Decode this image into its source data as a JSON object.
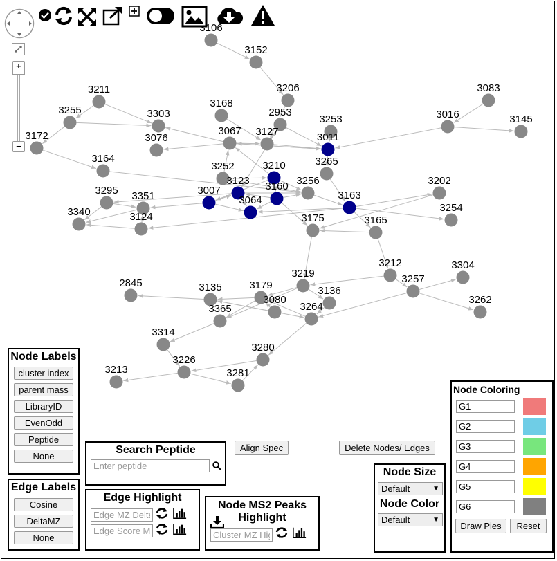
{
  "graph": {
    "nodes": [
      {
        "id": "3106",
        "color": "gray"
      },
      {
        "id": "3152",
        "color": "gray"
      },
      {
        "id": "3206",
        "color": "gray"
      },
      {
        "id": "3211",
        "color": "gray"
      },
      {
        "id": "3083",
        "color": "gray"
      },
      {
        "id": "3255",
        "color": "gray"
      },
      {
        "id": "3303",
        "color": "gray"
      },
      {
        "id": "3168",
        "color": "gray"
      },
      {
        "id": "2953",
        "color": "gray"
      },
      {
        "id": "3016",
        "color": "gray"
      },
      {
        "id": "3145",
        "color": "gray"
      },
      {
        "id": "3253",
        "color": "gray"
      },
      {
        "id": "3172",
        "color": "gray"
      },
      {
        "id": "3076",
        "color": "gray"
      },
      {
        "id": "3067",
        "color": "gray"
      },
      {
        "id": "3127",
        "color": "gray"
      },
      {
        "id": "3011",
        "color": "blue"
      },
      {
        "id": "3164",
        "color": "gray"
      },
      {
        "id": "3252",
        "color": "gray"
      },
      {
        "id": "3210",
        "color": "blue"
      },
      {
        "id": "3265",
        "color": "gray"
      },
      {
        "id": "3202",
        "color": "gray"
      },
      {
        "id": "3123",
        "color": "blue"
      },
      {
        "id": "3295",
        "color": "gray"
      },
      {
        "id": "3007",
        "color": "blue"
      },
      {
        "id": "3160",
        "color": "blue"
      },
      {
        "id": "3256",
        "color": "gray"
      },
      {
        "id": "3163",
        "color": "blue"
      },
      {
        "id": "3351",
        "color": "gray"
      },
      {
        "id": "3064",
        "color": "blue"
      },
      {
        "id": "3254",
        "color": "gray"
      },
      {
        "id": "3340",
        "color": "gray"
      },
      {
        "id": "3124",
        "color": "gray"
      },
      {
        "id": "3175",
        "color": "gray"
      },
      {
        "id": "3165",
        "color": "gray"
      },
      {
        "id": "3212",
        "color": "gray"
      },
      {
        "id": "3304",
        "color": "gray"
      },
      {
        "id": "2845",
        "color": "gray"
      },
      {
        "id": "3219",
        "color": "gray"
      },
      {
        "id": "3257",
        "color": "gray"
      },
      {
        "id": "3135",
        "color": "gray"
      },
      {
        "id": "3179",
        "color": "gray"
      },
      {
        "id": "3136",
        "color": "gray"
      },
      {
        "id": "3080",
        "color": "gray"
      },
      {
        "id": "3262",
        "color": "gray"
      },
      {
        "id": "3365",
        "color": "gray"
      },
      {
        "id": "3264",
        "color": "gray"
      },
      {
        "id": "3314",
        "color": "gray"
      },
      {
        "id": "3280",
        "color": "gray"
      },
      {
        "id": "3226",
        "color": "gray"
      },
      {
        "id": "3213",
        "color": "gray"
      },
      {
        "id": "3281",
        "color": "gray"
      }
    ],
    "edges": [
      [
        "3106",
        "3152"
      ],
      [
        "3152",
        "3206"
      ],
      [
        "3206",
        "3127"
      ],
      [
        "3211",
        "3255"
      ],
      [
        "3211",
        "3303"
      ],
      [
        "3255",
        "3172"
      ],
      [
        "3255",
        "3303"
      ],
      [
        "3172",
        "3164"
      ],
      [
        "3083",
        "3016"
      ],
      [
        "3016",
        "3145"
      ],
      [
        "3016",
        "3011"
      ],
      [
        "3253",
        "3011"
      ],
      [
        "2953",
        "3011"
      ],
      [
        "2953",
        "3127"
      ],
      [
        "3168",
        "3127"
      ],
      [
        "3067",
        "3303"
      ],
      [
        "3067",
        "3076"
      ],
      [
        "3067",
        "3127"
      ],
      [
        "3127",
        "3011"
      ],
      [
        "3011",
        "3067"
      ],
      [
        "3011",
        "3265"
      ],
      [
        "3164",
        "3256"
      ],
      [
        "3252",
        "3210"
      ],
      [
        "3252",
        "3256"
      ],
      [
        "3210",
        "3256"
      ],
      [
        "3210",
        "3160"
      ],
      [
        "3210",
        "3007"
      ],
      [
        "3123",
        "3295"
      ],
      [
        "3123",
        "3064"
      ],
      [
        "3123",
        "3256"
      ],
      [
        "3007",
        "3123"
      ],
      [
        "3007",
        "3351"
      ],
      [
        "3007",
        "3064"
      ],
      [
        "3160",
        "3064"
      ],
      [
        "3160",
        "3256"
      ],
      [
        "3160",
        "3175"
      ],
      [
        "3160",
        "3123"
      ],
      [
        "3256",
        "3163"
      ],
      [
        "3265",
        "3163"
      ],
      [
        "3163",
        "3202"
      ],
      [
        "3163",
        "3254"
      ],
      [
        "3163",
        "3165"
      ],
      [
        "3163",
        "3064"
      ],
      [
        "3163",
        "3124"
      ],
      [
        "3202",
        "3175"
      ],
      [
        "3295",
        "3340"
      ],
      [
        "3295",
        "3351"
      ],
      [
        "3351",
        "3340"
      ],
      [
        "3124",
        "3340"
      ],
      [
        "3124",
        "3351"
      ],
      [
        "3175",
        "3219"
      ],
      [
        "3165",
        "3175"
      ],
      [
        "3165",
        "3212"
      ],
      [
        "3212",
        "3219"
      ],
      [
        "3212",
        "3257"
      ],
      [
        "3257",
        "3304"
      ],
      [
        "3257",
        "3262"
      ],
      [
        "3257",
        "3264"
      ],
      [
        "3219",
        "3136"
      ],
      [
        "3219",
        "3179"
      ],
      [
        "3219",
        "3365"
      ],
      [
        "3179",
        "3135"
      ],
      [
        "3135",
        "2845"
      ],
      [
        "3135",
        "3264"
      ],
      [
        "3080",
        "3135"
      ],
      [
        "3080",
        "3179"
      ],
      [
        "3136",
        "3264"
      ],
      [
        "3264",
        "3179"
      ],
      [
        "3264",
        "3280"
      ],
      [
        "3179",
        "3365"
      ],
      [
        "3365",
        "3314"
      ],
      [
        "3314",
        "3226"
      ],
      [
        "3226",
        "3213"
      ],
      [
        "3226",
        "3281"
      ],
      [
        "3280",
        "3226"
      ],
      [
        "3281",
        "3280"
      ],
      [
        "3067",
        "3011"
      ],
      [
        "3252",
        "3067"
      ],
      [
        "3210",
        "3067"
      ],
      [
        "2953",
        "3123"
      ]
    ]
  },
  "zoom": {
    "plus": "+",
    "minus": "−"
  },
  "node_labels": {
    "title": "Node Labels",
    "buttons": [
      "cluster index",
      "parent mass",
      "LibraryID",
      "EvenOdd",
      "Peptide",
      "None"
    ]
  },
  "edge_labels": {
    "title": "Edge Labels",
    "buttons": [
      "Cosine",
      "DeltaMZ",
      "None"
    ]
  },
  "search_peptide": {
    "title": "Search Peptide",
    "placeholder": "Enter peptide"
  },
  "align_spec": {
    "label": "Align Spec"
  },
  "delete_nodes": {
    "label": "Delete Nodes/ Edges"
  },
  "edge_highlight": {
    "title": "Edge Highlight",
    "delta_placeholder": "Edge MZ Delta",
    "score_placeholder": "Edge Score Min"
  },
  "ms2": {
    "title_line1": "Node MS2 Peaks",
    "title_line2": "Highlight",
    "placeholder": "Cluster MZ Highlight"
  },
  "node_size": {
    "title": "Node Size",
    "selected": "Default"
  },
  "node_color": {
    "title": "Node Color",
    "selected": "Default"
  },
  "node_coloring": {
    "title": "Node Coloring",
    "groups": [
      {
        "name": "G1",
        "color": "#f07a7a"
      },
      {
        "name": "G2",
        "color": "#6fcde6"
      },
      {
        "name": "G3",
        "color": "#78e67d"
      },
      {
        "name": "G4",
        "color": "#ffa500"
      },
      {
        "name": "G5",
        "color": "#ffff00"
      },
      {
        "name": "G6",
        "color": "#808080"
      }
    ],
    "draw_pies": "Draw Pies",
    "reset": "Reset"
  },
  "colors": {
    "gray_node": "#888888",
    "blue_node": "#00008b",
    "edge": "#bbbbbb"
  }
}
